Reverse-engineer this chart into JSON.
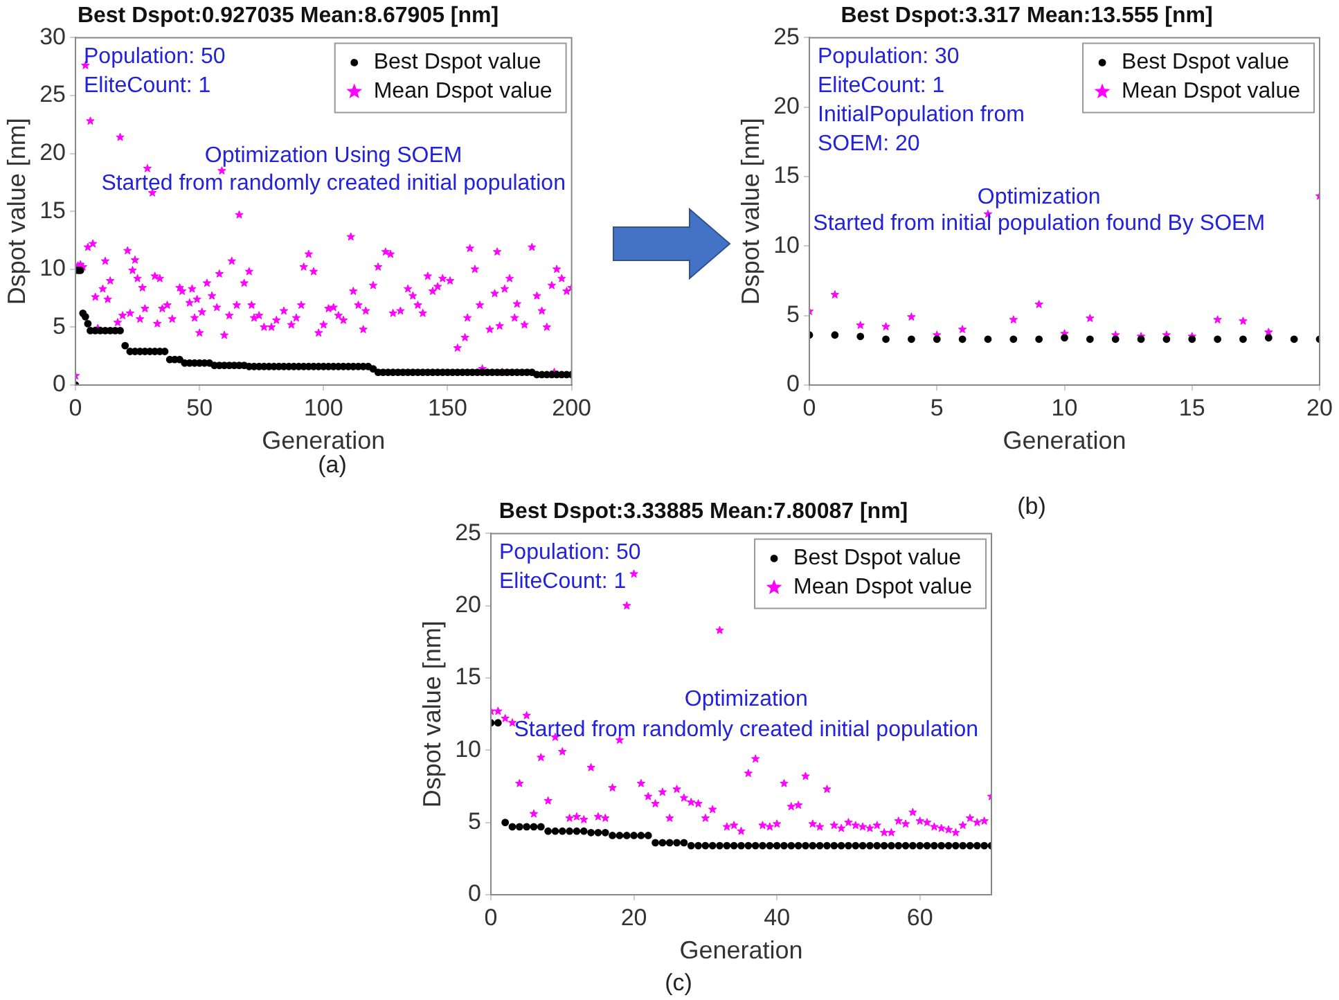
{
  "chart_data": [
    {
      "type": "scatter",
      "title": "Best Dspot:0.927035 Mean:8.67905 [nm]",
      "xlabel": "Generation",
      "ylabel": "Dspot value [nm]",
      "xlim": [
        0,
        200
      ],
      "xticks": [
        0,
        50,
        100,
        150,
        200
      ],
      "ylim": [
        0,
        30
      ],
      "yticks": [
        0,
        5,
        10,
        15,
        20,
        25,
        30
      ],
      "grid": false,
      "legend": "top right",
      "annotations": [
        "Population: 50",
        "EliteCount: 1",
        "Optimization Using SOEM",
        "Started from randomly created initial population",
        "(a)"
      ],
      "series": [
        {
          "name": "Best Dspot value",
          "color": "#000000",
          "marker": "circle",
          "x": [
            0,
            1,
            2,
            3,
            4,
            5,
            6,
            8,
            10,
            12,
            14,
            16,
            18,
            20,
            22,
            24,
            26,
            28,
            30,
            32,
            34,
            36,
            38,
            40,
            42,
            44,
            46,
            48,
            50,
            52,
            54,
            56,
            58,
            60,
            62,
            64,
            66,
            68,
            70,
            72,
            74,
            76,
            78,
            80,
            82,
            84,
            86,
            88,
            90,
            92,
            94,
            96,
            98,
            100,
            102,
            104,
            106,
            108,
            110,
            112,
            114,
            116,
            118,
            120,
            122,
            124,
            126,
            128,
            130,
            132,
            134,
            136,
            138,
            140,
            142,
            144,
            146,
            148,
            150,
            152,
            154,
            156,
            158,
            160,
            162,
            164,
            166,
            168,
            170,
            172,
            174,
            176,
            178,
            180,
            182,
            184,
            186,
            188,
            190,
            192,
            194,
            196,
            198,
            200
          ],
          "values": [
            0,
            9.9,
            9.9,
            6.2,
            5.9,
            5.3,
            4.7,
            4.7,
            4.7,
            4.7,
            4.7,
            4.7,
            4.7,
            3.4,
            2.9,
            2.9,
            2.9,
            2.9,
            2.9,
            2.9,
            2.9,
            2.9,
            2.2,
            2.2,
            2.2,
            1.9,
            1.9,
            1.9,
            1.9,
            1.9,
            1.9,
            1.7,
            1.7,
            1.7,
            1.7,
            1.7,
            1.7,
            1.7,
            1.6,
            1.6,
            1.6,
            1.6,
            1.6,
            1.6,
            1.6,
            1.6,
            1.6,
            1.6,
            1.6,
            1.6,
            1.6,
            1.6,
            1.6,
            1.6,
            1.6,
            1.6,
            1.6,
            1.6,
            1.6,
            1.6,
            1.6,
            1.6,
            1.6,
            1.4,
            1.1,
            1.1,
            1.1,
            1.1,
            1.1,
            1.1,
            1.1,
            1.1,
            1.1,
            1.1,
            1.1,
            1.1,
            1.1,
            1.1,
            1.1,
            1.1,
            1.1,
            1.1,
            1.1,
            1.1,
            1.1,
            1.1,
            1.1,
            1.1,
            1.1,
            1.1,
            1.1,
            1.1,
            1.1,
            1.1,
            1.1,
            1.1,
            0.9,
            0.9,
            0.9,
            0.9,
            0.9,
            0.9,
            0.9,
            0.9
          ]
        },
        {
          "name": "Mean Dspot value",
          "color": "#ff00ff",
          "marker": "star",
          "x": [
            0,
            1,
            2,
            3,
            4,
            5,
            6,
            7,
            8,
            9,
            11,
            12,
            13,
            14,
            17,
            18,
            19,
            21,
            22,
            23,
            24,
            25,
            26,
            27,
            28,
            29,
            31,
            32,
            33,
            34,
            35,
            37,
            39,
            42,
            43,
            46,
            47,
            48,
            49,
            50,
            51,
            53,
            55,
            57,
            58,
            59,
            60,
            62,
            63,
            65,
            66,
            68,
            70,
            71,
            72,
            74,
            76,
            79,
            81,
            84,
            87,
            89,
            91,
            92,
            94,
            96,
            98,
            100,
            102,
            104,
            106,
            108,
            111,
            112,
            114,
            116,
            117,
            120,
            122,
            125,
            127,
            128,
            131,
            134,
            136,
            138,
            140,
            142,
            144,
            146,
            148,
            151,
            154,
            157,
            158,
            159,
            161,
            163,
            164,
            167,
            169,
            170,
            171,
            172,
            173,
            175,
            177,
            178,
            181,
            184,
            186,
            188,
            190,
            192,
            193,
            194,
            196,
            198,
            200
          ],
          "values": [
            0.8,
            10.3,
            10.4,
            10.2,
            27.6,
            11.9,
            22.8,
            12.2,
            7.6,
            4.9,
            8.3,
            10.7,
            7.4,
            9.0,
            5.4,
            21.4,
            6.0,
            11.6,
            6.2,
            9.9,
            10.8,
            9.2,
            5.7,
            8.4,
            6.6,
            18.7,
            16.6,
            9.4,
            5.3,
            9.2,
            6.6,
            6.9,
            5.7,
            8.4,
            8.1,
            7.1,
            8.3,
            5.8,
            7.4,
            4.5,
            6.3,
            8.8,
            7.7,
            6.7,
            9.6,
            18.5,
            4.3,
            6.0,
            10.7,
            6.9,
            14.7,
            8.8,
            9.8,
            6.9,
            5.8,
            6.0,
            5.0,
            5.0,
            5.6,
            6.4,
            5.2,
            5.8,
            6.9,
            10.2,
            11.3,
            9.8,
            4.5,
            5.2,
            6.6,
            6.7,
            6.0,
            5.6,
            12.8,
            8.1,
            6.9,
            4.8,
            6.4,
            8.6,
            10.2,
            11.5,
            11.3,
            6.2,
            6.4,
            8.3,
            7.7,
            6.9,
            6.2,
            9.4,
            8.1,
            8.5,
            9.2,
            9.0,
            3.2,
            4.1,
            5.8,
            11.8,
            10.0,
            6.9,
            1.4,
            4.8,
            7.9,
            11.5,
            5.1,
            1.1,
            8.3,
            9.2,
            5.8,
            7.0,
            5.2,
            11.9,
            7.7,
            6.4,
            5.0,
            8.6,
            1.1,
            10.0,
            9.2,
            8.1,
            8.4
          ]
        }
      ]
    },
    {
      "type": "scatter",
      "title": "Best Dspot:3.317 Mean:13.555 [nm]",
      "xlabel": "Generation",
      "ylabel": "Dspot value [nm]",
      "xlim": [
        0,
        20
      ],
      "xticks": [
        0,
        5,
        10,
        15,
        20
      ],
      "ylim": [
        0,
        25
      ],
      "yticks": [
        0,
        5,
        10,
        15,
        20,
        25
      ],
      "grid": false,
      "legend": "top right",
      "x": [
        0,
        1,
        2,
        3,
        4,
        5,
        6,
        7,
        8,
        9,
        10,
        11,
        12,
        13,
        14,
        15,
        16,
        17,
        18,
        19,
        20
      ],
      "annotations": [
        "Population: 30",
        "EliteCount: 1",
        "InitialPopulation from",
        "SOEM: 20",
        "Optimization",
        "Started from initial population found By SOEM",
        "(b)"
      ],
      "series": [
        {
          "name": "Best Dspot value",
          "color": "#000000",
          "marker": "circle",
          "values": [
            3.6,
            3.6,
            3.5,
            3.3,
            3.3,
            3.3,
            3.3,
            3.3,
            3.3,
            3.3,
            3.4,
            3.3,
            3.3,
            3.3,
            3.3,
            3.3,
            3.3,
            3.3,
            3.4,
            3.3,
            3.3
          ]
        },
        {
          "name": "Mean Dspot value",
          "color": "#ff00ff",
          "marker": "star",
          "values": [
            5.3,
            6.5,
            4.3,
            4.2,
            4.9,
            3.6,
            4.0,
            12.3,
            4.7,
            5.8,
            3.7,
            4.8,
            3.6,
            3.5,
            3.6,
            3.5,
            4.7,
            4.6,
            3.8,
            null,
            13.6
          ]
        }
      ]
    },
    {
      "type": "scatter",
      "title": "Best Dspot:3.33885 Mean:7.80087 [nm]",
      "xlabel": "Generation",
      "ylabel": "Dspot value [nm]",
      "xlim": [
        0,
        70
      ],
      "xticks": [
        0,
        20,
        40,
        60
      ],
      "ylim": [
        0,
        25
      ],
      "yticks": [
        0,
        5,
        10,
        15,
        20,
        25
      ],
      "grid": false,
      "legend": "top right",
      "x": [
        0,
        1,
        2,
        3,
        4,
        5,
        6,
        7,
        8,
        9,
        10,
        11,
        12,
        13,
        14,
        15,
        16,
        17,
        18,
        19,
        20,
        21,
        22,
        23,
        24,
        25,
        26,
        27,
        28,
        29,
        30,
        31,
        32,
        33,
        34,
        35,
        36,
        37,
        38,
        39,
        40,
        41,
        42,
        43,
        44,
        45,
        46,
        47,
        48,
        49,
        50,
        51,
        52,
        53,
        54,
        55,
        56,
        57,
        58,
        59,
        60,
        61,
        62,
        63,
        64,
        65,
        66,
        67,
        68,
        69,
        70
      ],
      "annotations": [
        "Population: 50",
        "EliteCount: 1",
        "Optimization",
        "Started from randomly created initial population",
        "(c)"
      ],
      "series": [
        {
          "name": "Best Dspot value",
          "color": "#000000",
          "marker": "circle",
          "values": [
            11.9,
            11.9,
            5.0,
            4.7,
            4.7,
            4.7,
            4.7,
            4.7,
            4.4,
            4.4,
            4.4,
            4.4,
            4.4,
            4.4,
            4.3,
            4.3,
            4.3,
            4.1,
            4.1,
            4.1,
            4.1,
            4.1,
            4.1,
            3.6,
            3.6,
            3.6,
            3.6,
            3.6,
            3.4,
            3.4,
            3.4,
            3.4,
            3.4,
            3.4,
            3.4,
            3.4,
            3.4,
            3.4,
            3.4,
            3.4,
            3.4,
            3.4,
            3.4,
            3.4,
            3.4,
            3.4,
            3.4,
            3.4,
            3.4,
            3.4,
            3.4,
            3.4,
            3.4,
            3.4,
            3.4,
            3.4,
            3.4,
            3.4,
            3.4,
            3.4,
            3.4,
            3.4,
            3.4,
            3.4,
            3.4,
            3.4,
            3.4,
            3.4,
            3.4,
            3.4,
            3.4
          ]
        },
        {
          "name": "Mean Dspot value",
          "color": "#ff00ff",
          "marker": "star",
          "values": [
            12.7,
            12.7,
            12.2,
            11.9,
            7.7,
            12.4,
            5.6,
            9.5,
            6.5,
            10.9,
            9.9,
            5.3,
            5.4,
            5.2,
            8.8,
            5.4,
            5.3,
            7.4,
            10.7,
            20.0,
            22.2,
            7.7,
            6.8,
            6.3,
            7.1,
            5.3,
            7.3,
            6.7,
            6.4,
            6.3,
            5.3,
            5.9,
            18.3,
            4.7,
            4.8,
            4.4,
            8.4,
            9.4,
            4.8,
            4.7,
            4.9,
            7.7,
            6.1,
            6.2,
            8.2,
            4.9,
            4.7,
            7.3,
            4.8,
            4.6,
            5.0,
            4.8,
            4.7,
            4.6,
            4.8,
            4.3,
            4.3,
            5.1,
            4.9,
            5.7,
            5.1,
            5.0,
            4.7,
            4.6,
            4.5,
            4.3,
            4.8,
            5.3,
            5.0,
            5.1,
            6.8
          ]
        }
      ]
    }
  ]
}
